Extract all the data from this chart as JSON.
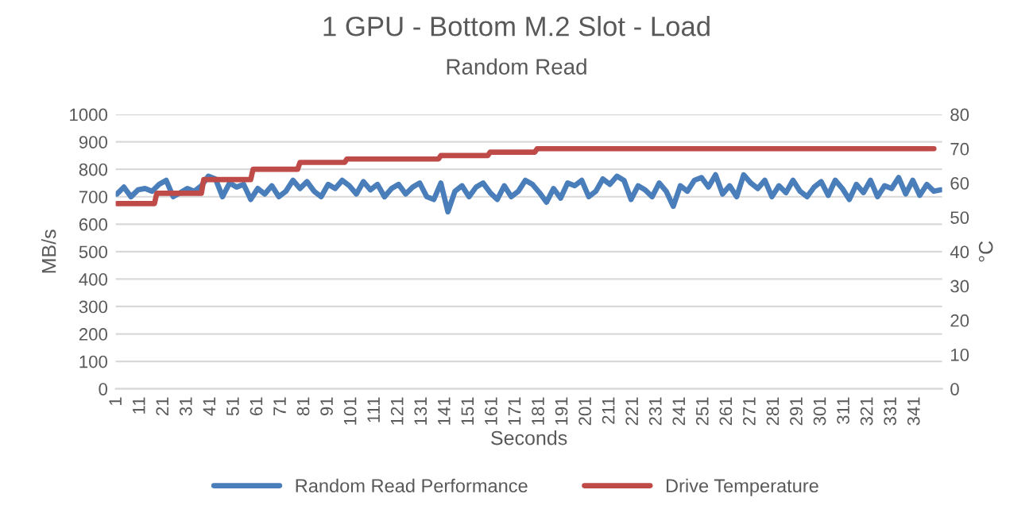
{
  "chart_data": {
    "type": "line",
    "title": "1 GPU - Bottom M.2 Slot - Load",
    "subtitle": "Random Read",
    "xlabel": "Seconds",
    "ylabel": "MB/s",
    "y2label": "°C",
    "xlim": [
      0.5,
      352.5
    ],
    "xticks": [
      1,
      11,
      21,
      31,
      41,
      51,
      61,
      71,
      81,
      91,
      101,
      111,
      121,
      131,
      141,
      151,
      161,
      171,
      181,
      191,
      201,
      211,
      221,
      231,
      241,
      251,
      261,
      271,
      281,
      291,
      301,
      311,
      321,
      331,
      341
    ],
    "ylim": [
      0,
      1000
    ],
    "yticks": [
      0,
      100,
      200,
      300,
      400,
      500,
      600,
      700,
      800,
      900,
      1000
    ],
    "y2lim": [
      0,
      80
    ],
    "y2ticks": [
      0,
      10,
      20,
      30,
      40,
      50,
      60,
      70,
      80
    ],
    "grid": "y",
    "legend": "bottom",
    "marker": "none",
    "line_style": "solid",
    "series": [
      {
        "name": "Random Read Performance",
        "color": "#4a7ebb",
        "x": [
          1,
          4,
          7,
          10,
          13,
          16,
          19,
          22,
          25,
          28,
          31,
          34,
          37,
          40,
          43,
          46,
          49,
          52,
          55,
          58,
          61,
          64,
          67,
          70,
          73,
          76,
          79,
          82,
          85,
          88,
          91,
          94,
          97,
          100,
          103,
          106,
          109,
          112,
          115,
          118,
          121,
          124,
          127,
          130,
          133,
          136,
          139,
          142,
          145,
          148,
          151,
          154,
          157,
          160,
          163,
          166,
          169,
          172,
          175,
          178,
          181,
          184,
          187,
          190,
          193,
          196,
          199,
          202,
          205,
          208,
          211,
          214,
          217,
          220,
          223,
          226,
          229,
          232,
          235,
          238,
          241,
          244,
          247,
          250,
          253,
          256,
          259,
          262,
          265,
          268,
          271,
          274,
          277,
          280,
          283,
          286,
          289,
          292,
          295,
          298,
          301,
          304,
          307,
          310,
          313,
          316,
          319,
          322,
          325,
          328,
          331,
          334,
          337,
          340,
          343,
          346,
          349,
          352
        ],
        "values": [
          710,
          735,
          700,
          725,
          730,
          720,
          745,
          760,
          700,
          715,
          730,
          720,
          740,
          775,
          765,
          700,
          750,
          735,
          745,
          690,
          730,
          710,
          740,
          700,
          720,
          760,
          730,
          755,
          720,
          700,
          745,
          730,
          760,
          740,
          710,
          755,
          725,
          745,
          700,
          730,
          745,
          710,
          735,
          750,
          700,
          690,
          750,
          645,
          720,
          740,
          700,
          735,
          750,
          715,
          690,
          740,
          700,
          720,
          760,
          745,
          715,
          680,
          730,
          695,
          750,
          740,
          760,
          700,
          720,
          765,
          745,
          775,
          760,
          690,
          740,
          725,
          700,
          750,
          720,
          665,
          740,
          720,
          760,
          770,
          735,
          780,
          710,
          740,
          700,
          780,
          750,
          730,
          760,
          700,
          740,
          715,
          760,
          720,
          700,
          735,
          755,
          705,
          760,
          730,
          690,
          745,
          715,
          760,
          700,
          740,
          730,
          770,
          710,
          760,
          705,
          745,
          720,
          725
        ]
      },
      {
        "name": "Drive Temperature",
        "color": "#be4b48",
        "axis": "y2",
        "x": [
          1,
          17,
          18,
          37,
          38,
          58,
          59,
          78,
          79,
          98,
          99,
          138,
          139,
          159,
          160,
          179,
          180,
          349
        ],
        "values": [
          54,
          54,
          57,
          57,
          61,
          61,
          64,
          64,
          66,
          66,
          67,
          67,
          68,
          68,
          69,
          69,
          70,
          70
        ]
      }
    ]
  }
}
